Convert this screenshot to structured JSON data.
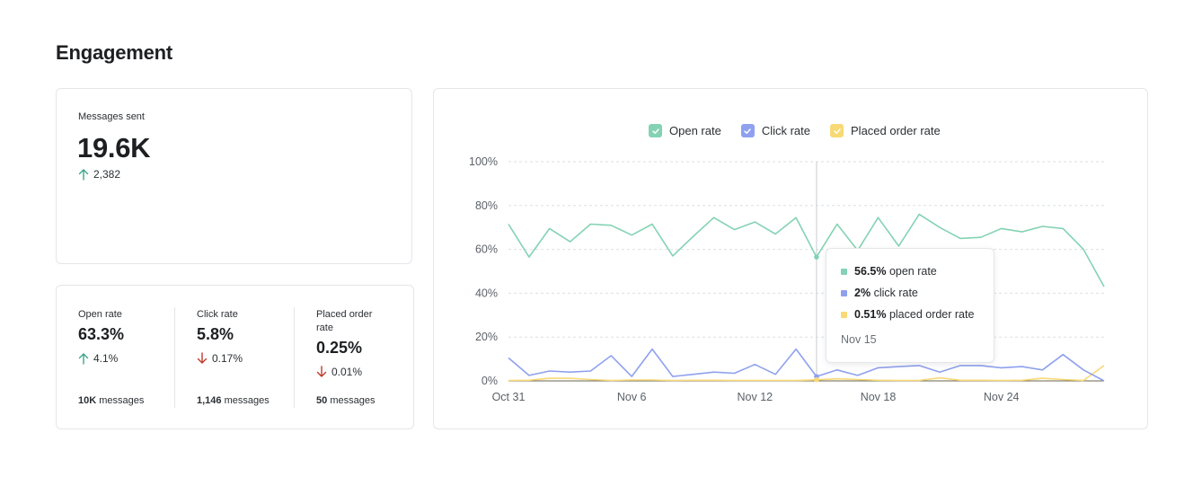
{
  "page": {
    "title": "Engagement"
  },
  "messages_sent": {
    "label": "Messages sent",
    "value": "19.6K",
    "delta": "2,382",
    "delta_direction": "up"
  },
  "metrics": [
    {
      "label": "Open rate",
      "value": "63.3%",
      "delta": "4.1%",
      "delta_direction": "up",
      "count": "10K",
      "count_suffix": "messages"
    },
    {
      "label": "Click rate",
      "value": "5.8%",
      "delta": "0.17%",
      "delta_direction": "down",
      "count": "1,146",
      "count_suffix": "messages"
    },
    {
      "label": "Placed order rate",
      "value": "0.25%",
      "delta": "0.01%",
      "delta_direction": "down",
      "count": "50",
      "count_suffix": "messages"
    }
  ],
  "colors": {
    "up": "#3aa58a",
    "down": "#c0392b",
    "open": "#84d2b4",
    "click": "#8fa1ee",
    "order": "#f8d975",
    "grid": "#dcdfe3",
    "axis_text": "#5b6168"
  },
  "legend": [
    {
      "label": "Open rate",
      "color": "#84d2b4"
    },
    {
      "label": "Click rate",
      "color": "#8fa1ee"
    },
    {
      "label": "Placed order rate",
      "color": "#f8d975"
    }
  ],
  "tooltip": {
    "rows": [
      {
        "value": "56.5%",
        "text": "open rate",
        "color": "#84d2b4"
      },
      {
        "value": "2%",
        "text": "click rate",
        "color": "#8fa1ee"
      },
      {
        "value": "0.51%",
        "text": "placed order rate",
        "color": "#f8d975"
      }
    ],
    "date": "Nov 15",
    "index": 15
  },
  "chart_data": {
    "type": "line",
    "x_tick_labels": [
      {
        "index": 0,
        "label": "Oct 31"
      },
      {
        "index": 6,
        "label": "Nov 6"
      },
      {
        "index": 12,
        "label": "Nov 12"
      },
      {
        "index": 18,
        "label": "Nov 18"
      },
      {
        "index": 24,
        "label": "Nov 24"
      }
    ],
    "y_ticks": [
      0,
      20,
      40,
      60,
      80,
      100
    ],
    "y_tick_labels": [
      "0%",
      "20%",
      "40%",
      "60%",
      "80%",
      "100%"
    ],
    "ylim": [
      0,
      100
    ],
    "series": [
      {
        "name": "Open rate",
        "color": "#84d2b4",
        "values": [
          71.5,
          56.5,
          69.5,
          63.5,
          71.5,
          71,
          66.5,
          71.5,
          57,
          66,
          74.5,
          69,
          72.5,
          67,
          74.5,
          56.5,
          71.5,
          59.5,
          74.5,
          61.5,
          76,
          70,
          65,
          65.5,
          69.5,
          68,
          70.5,
          69.5,
          60,
          43
        ]
      },
      {
        "name": "Click rate",
        "color": "#8fa1ee",
        "values": [
          10.5,
          2.5,
          4.5,
          4,
          4.5,
          11.5,
          2,
          14.5,
          2,
          3,
          4,
          3.5,
          7.5,
          3,
          14.5,
          2,
          5,
          2.5,
          6,
          6.5,
          7,
          4,
          7,
          7,
          6,
          6.5,
          5,
          12,
          5,
          0
        ]
      },
      {
        "name": "Placed order rate",
        "color": "#f8d975",
        "values": [
          0.2,
          0.3,
          1.2,
          1.2,
          0.6,
          0.2,
          0.4,
          0.4,
          0.2,
          0.3,
          0.3,
          0.2,
          0.2,
          0.2,
          0.2,
          0.51,
          1.0,
          0.6,
          0.3,
          0.2,
          0.2,
          1.4,
          0.3,
          0.3,
          0.2,
          0.3,
          1.2,
          0.6,
          0.2,
          7
        ]
      }
    ]
  }
}
